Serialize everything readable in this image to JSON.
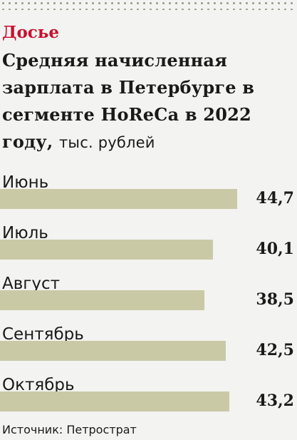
{
  "chart_data": {
    "type": "bar",
    "orientation": "horizontal",
    "kicker": "Досье",
    "title": "Средняя начисленная зарплата в Петербурге в сегменте HoReCa в 2022 году,",
    "unit": "тыс. рублей",
    "categories": [
      "Июнь",
      "Июль",
      "Август",
      "Сентябрь",
      "Октябрь"
    ],
    "values": [
      44.7,
      40.1,
      38.5,
      42.5,
      43.2
    ],
    "value_labels": [
      "44,7",
      "40,1",
      "38,5",
      "42,5",
      "43,2"
    ],
    "color": "#c9c9a6",
    "source": "Источник: Петрострат"
  }
}
